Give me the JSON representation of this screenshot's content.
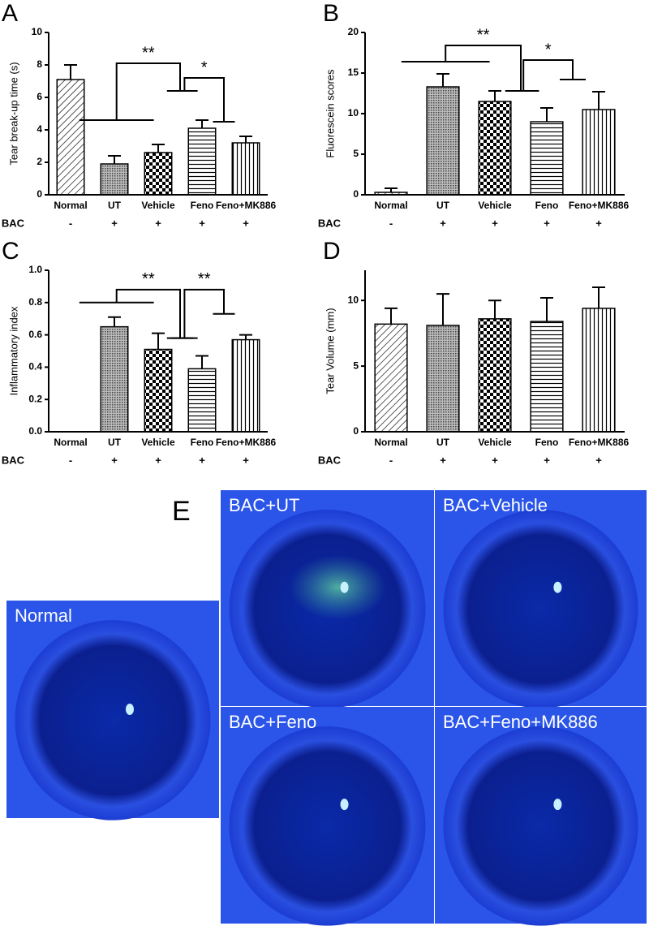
{
  "chart_data": [
    {
      "type": "bar",
      "panel": "A",
      "ylabel": "Tear break-up time (s)",
      "categories": [
        "Normal",
        "UT",
        "Vehicle",
        "Feno",
        "Feno+MK886"
      ],
      "row_label": "BAC",
      "row_values": [
        "-",
        "+",
        "+",
        "+",
        "+"
      ],
      "values": [
        7.1,
        1.9,
        2.6,
        4.1,
        3.2
      ],
      "errors": [
        0.9,
        0.5,
        0.5,
        0.5,
        0.4
      ],
      "ylim": [
        0,
        10
      ],
      "yticks": [
        0,
        2,
        4,
        6,
        8,
        10
      ],
      "annotations": [
        "**",
        "*"
      ]
    },
    {
      "type": "bar",
      "panel": "B",
      "ylabel": "Fluorescein scores",
      "categories": [
        "Normal",
        "UT",
        "Vehicle",
        "Feno",
        "Feno+MK886"
      ],
      "row_label": "BAC",
      "row_values": [
        "-",
        "+",
        "+",
        "+",
        "+"
      ],
      "values": [
        0.3,
        13.3,
        11.5,
        9.0,
        10.5
      ],
      "errors": [
        0.5,
        1.6,
        1.3,
        1.7,
        2.2
      ],
      "ylim": [
        0,
        20
      ],
      "yticks": [
        0,
        5,
        10,
        15,
        20
      ],
      "annotations": [
        "**",
        "*"
      ]
    },
    {
      "type": "bar",
      "panel": "C",
      "ylabel": "Inflammatory index",
      "categories": [
        "Normal",
        "UT",
        "Vehicle",
        "Feno",
        "Feno+MK886"
      ],
      "row_label": "BAC",
      "row_values": [
        "-",
        "+",
        "+",
        "+",
        "+"
      ],
      "values": [
        0,
        0.65,
        0.51,
        0.39,
        0.57
      ],
      "errors": [
        null,
        0.06,
        0.1,
        0.08,
        0.03
      ],
      "ylim": [
        0,
        1
      ],
      "yticks": [
        {
          "value": 0,
          "label": "0.0"
        },
        0.2,
        0.4,
        0.6,
        0.8,
        {
          "value": 1,
          "label": "1.0"
        }
      ],
      "annotations": [
        "**",
        "**"
      ]
    },
    {
      "type": "bar",
      "panel": "D",
      "ylabel": "Tear Volume (mm)",
      "categories": [
        "Normal",
        "UT",
        "Vehicle",
        "Feno",
        "Feno+MK886"
      ],
      "row_label": "BAC",
      "row_values": [
        "-",
        "+",
        "+",
        "+",
        "+"
      ],
      "values": [
        8.2,
        8.1,
        8.6,
        8.4,
        9.4
      ],
      "errors": [
        1.2,
        2.4,
        1.4,
        1.8,
        1.6
      ],
      "ylim": [
        0,
        12.3
      ],
      "yticks": [
        0,
        5,
        10
      ],
      "annotations": []
    }
  ],
  "photos": {
    "panel": "E",
    "images": [
      {
        "label": "Normal"
      },
      {
        "label": "BAC+UT"
      },
      {
        "label": "BAC+Vehicle"
      },
      {
        "label": "BAC+Feno"
      },
      {
        "label": "BAC+Feno+MK886"
      }
    ]
  }
}
